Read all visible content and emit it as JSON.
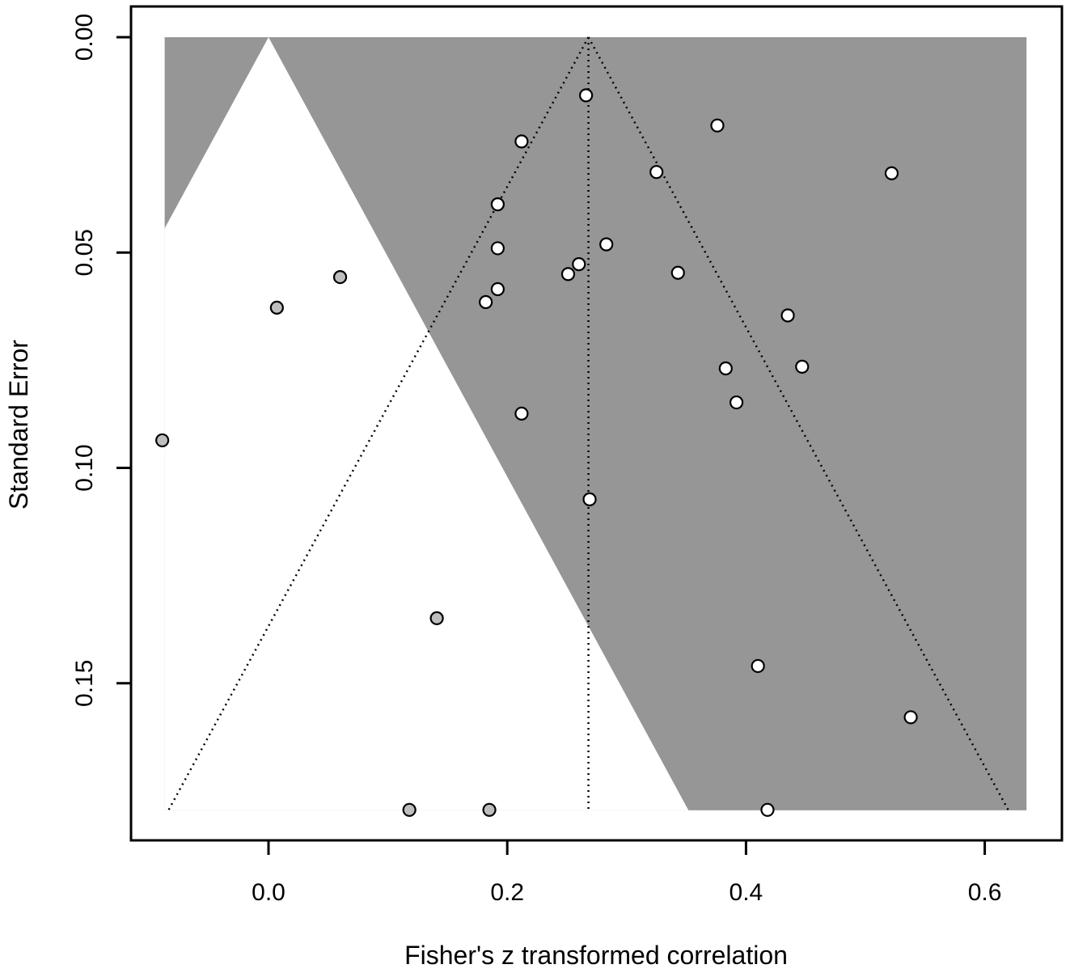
{
  "chart_data": {
    "type": "scatter",
    "subtype": "contour-enhanced funnel plot (trim-and-fill)",
    "title": "",
    "xlabel": "Fisher's z transformed correlation",
    "ylabel": "Standard Error",
    "xlim": [
      -0.145,
      0.658
    ],
    "ylim": [
      0.1755,
      0.0
    ],
    "y_reversed": true,
    "x_ticks": [
      0.0,
      0.2,
      0.4,
      0.6
    ],
    "x_tick_labels": [
      "0.0",
      "0.2",
      "0.4",
      "0.6"
    ],
    "y_ticks": [
      0.0,
      0.05,
      0.1,
      0.15
    ],
    "y_tick_labels": [
      "0.00",
      "0.05",
      "0.10",
      "0.15"
    ],
    "grid": false,
    "legend": "none",
    "colors": {
      "shaded_region": "#969696",
      "observed_point_fill": "#ffffff",
      "imputed_point_fill": "#bebebe",
      "line": "#000000"
    },
    "shaded_region": {
      "x_range": [
        -0.087,
        0.635
      ],
      "se_range": [
        0.0,
        0.1795
      ],
      "white_triangle_apex_x": 0.0,
      "white_triangle_z": 1.96
    },
    "pooled_estimate": 0.268,
    "funnel_z": 1.96,
    "series": [
      {
        "name": "observed",
        "points": [
          [
            0.266,
            0.0135
          ],
          [
            0.376,
            0.0205
          ],
          [
            0.212,
            0.0242
          ],
          [
            0.325,
            0.0313
          ],
          [
            0.522,
            0.0316
          ],
          [
            0.192,
            0.0388
          ],
          [
            0.283,
            0.0481
          ],
          [
            0.192,
            0.049
          ],
          [
            0.26,
            0.0527
          ],
          [
            0.251,
            0.055
          ],
          [
            0.343,
            0.0547
          ],
          [
            0.192,
            0.0585
          ],
          [
            0.182,
            0.0615
          ],
          [
            0.435,
            0.0646
          ],
          [
            0.383,
            0.0769
          ],
          [
            0.447,
            0.0765
          ],
          [
            0.392,
            0.0848
          ],
          [
            0.212,
            0.0874
          ],
          [
            0.269,
            0.1073
          ],
          [
            0.41,
            0.146
          ],
          [
            0.538,
            0.1579
          ],
          [
            0.418,
            0.1794
          ]
        ]
      },
      {
        "name": "imputed",
        "points": [
          [
            0.06,
            0.0557
          ],
          [
            0.007,
            0.0628
          ],
          [
            -0.089,
            0.0936
          ],
          [
            0.141,
            0.1349
          ],
          [
            0.118,
            0.1794
          ],
          [
            0.185,
            0.1794
          ]
        ]
      }
    ]
  }
}
